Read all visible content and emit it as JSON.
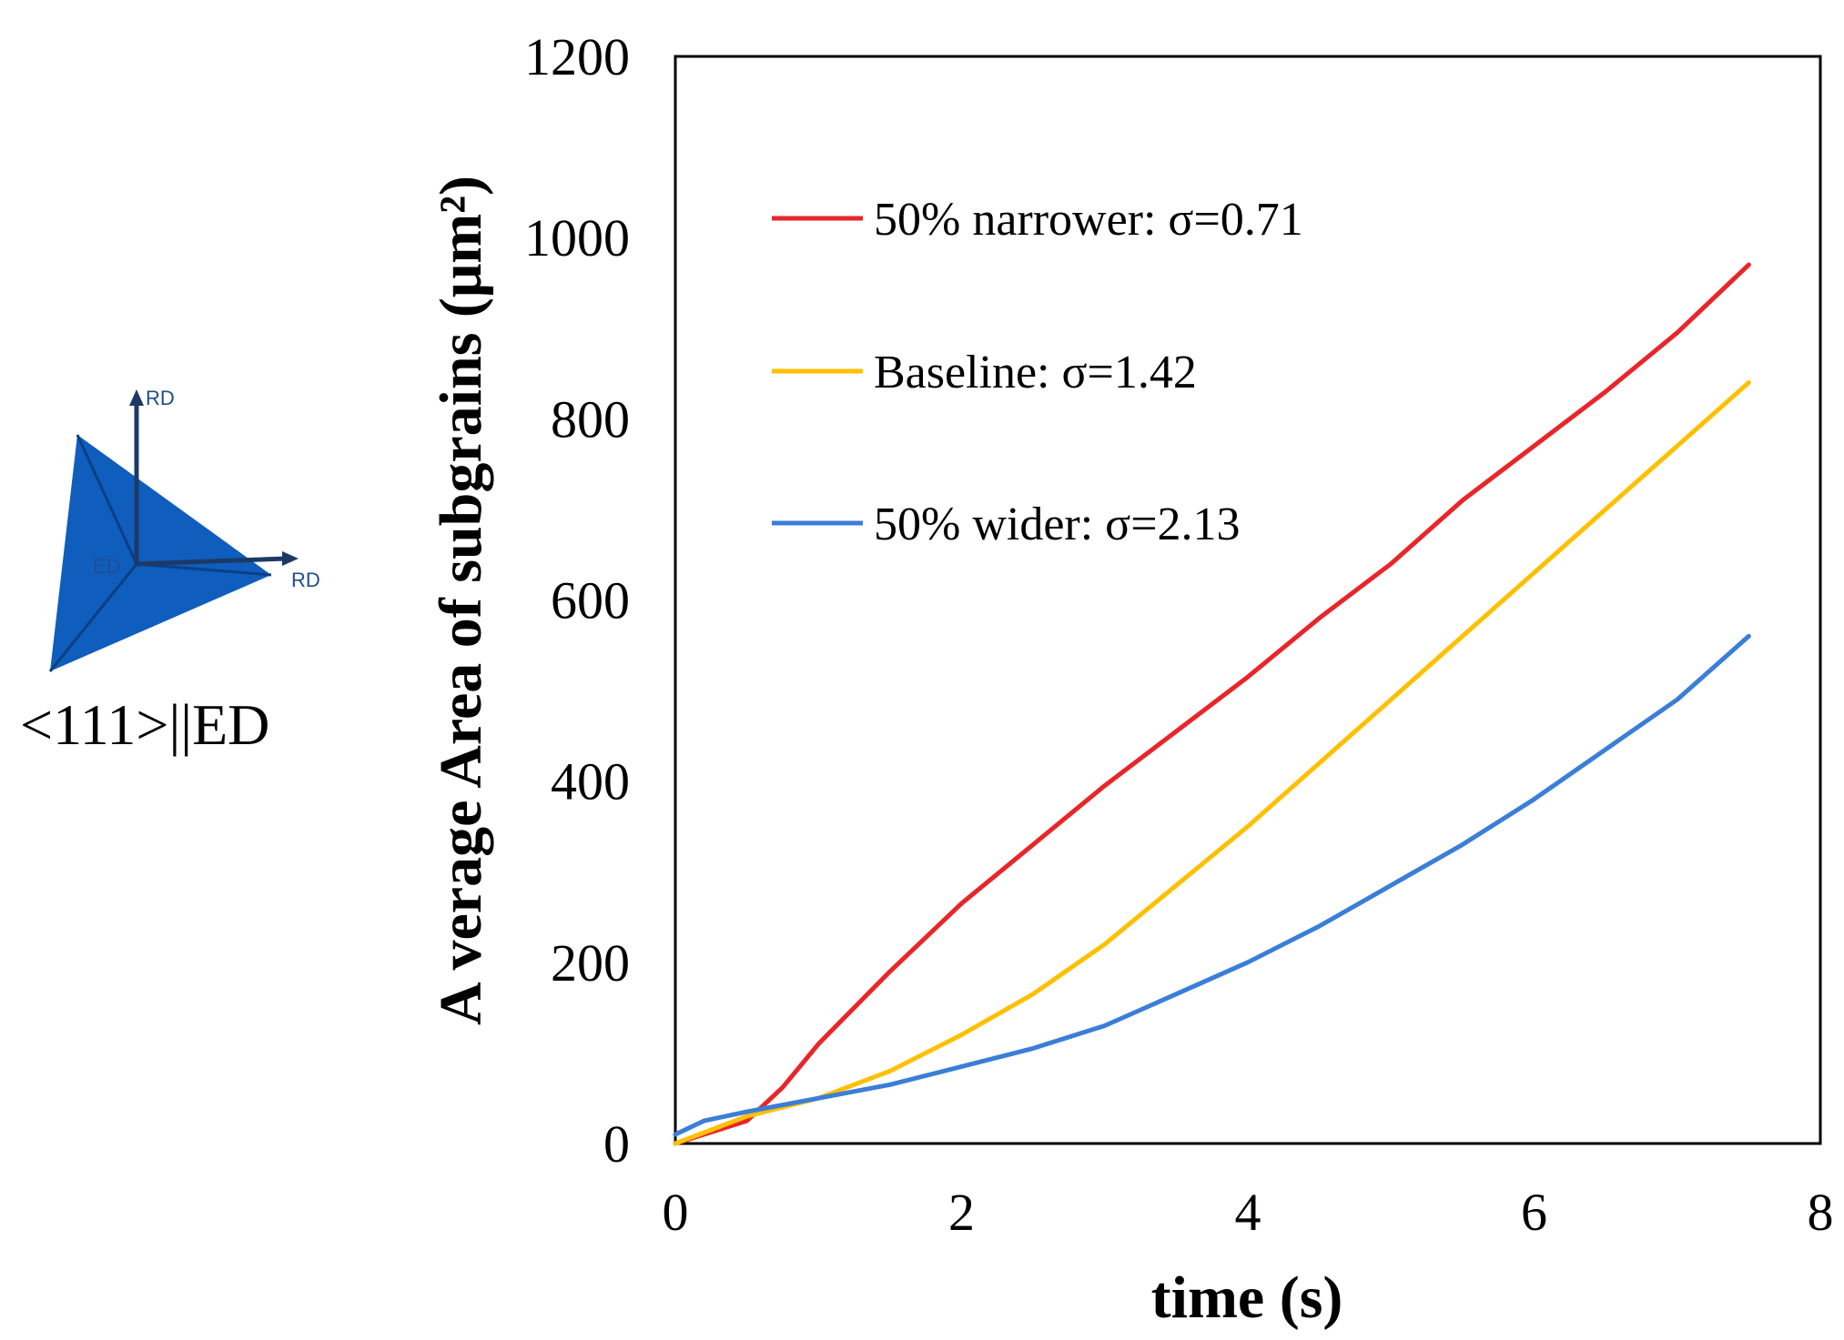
{
  "figure": {
    "caption": "<111>||ED",
    "orientation_labels": {
      "top": "RD",
      "right": "RD",
      "center": "ED"
    },
    "colors": {
      "triangle": "#0f5dbd",
      "axes_arrows": "#1c3a66"
    }
  },
  "chart_data": {
    "type": "line",
    "title": "",
    "xlabel": "time (s)",
    "ylabel": "A verage Area of subgrains (μm²)",
    "xlim": [
      0,
      8
    ],
    "ylim": [
      0,
      1200
    ],
    "xticks": [
      0,
      2,
      4,
      6,
      8
    ],
    "yticks": [
      0,
      200,
      400,
      600,
      800,
      1000,
      1200
    ],
    "grid": false,
    "legend_position": "top-left",
    "series": [
      {
        "name": "50% narrower: σ=0.71",
        "color": "#e8262a",
        "x": [
          0,
          0.5,
          0.75,
          1,
          1.5,
          2,
          2.5,
          3,
          3.5,
          4,
          4.5,
          5,
          5.5,
          6,
          6.5,
          7,
          7.5
        ],
        "y": [
          0,
          25,
          62,
          110,
          190,
          265,
          330,
          395,
          455,
          515,
          580,
          640,
          710,
          770,
          830,
          895,
          970
        ]
      },
      {
        "name": "Baseline: σ=1.42",
        "color": "#ffc000",
        "x": [
          0,
          0.5,
          1,
          1.5,
          2,
          2.5,
          3,
          3.5,
          4,
          4.5,
          5,
          5.5,
          6,
          6.5,
          7,
          7.5
        ],
        "y": [
          0,
          30,
          50,
          80,
          120,
          165,
          220,
          285,
          350,
          420,
          490,
          560,
          630,
          700,
          770,
          840
        ]
      },
      {
        "name": "50% wider: σ=2.13",
        "color": "#3a7ed8",
        "x": [
          0,
          0.2,
          0.5,
          1,
          1.5,
          2,
          2.5,
          3,
          3.5,
          4,
          4.5,
          5,
          5.5,
          6,
          6.5,
          7,
          7.5
        ],
        "y": [
          10,
          25,
          35,
          50,
          65,
          85,
          105,
          130,
          165,
          200,
          240,
          285,
          330,
          380,
          435,
          490,
          560
        ]
      }
    ]
  }
}
